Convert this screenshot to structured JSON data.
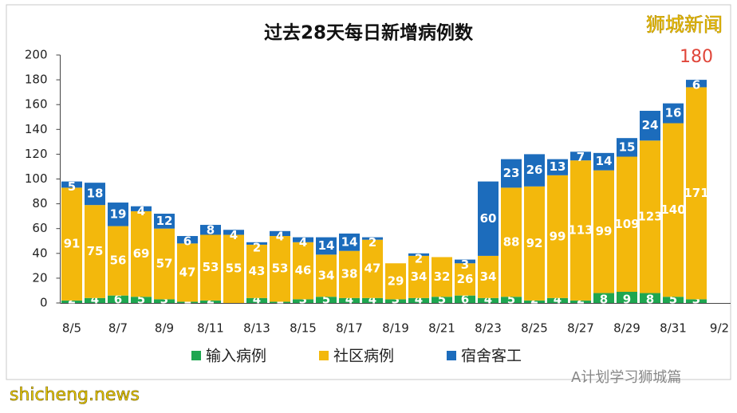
{
  "chart_data": {
    "type": "stacked_bar",
    "title": "过去28天每日新增病例数",
    "categories": [
      "8/5",
      null,
      "8/7",
      null,
      "8/9",
      null,
      "8/11",
      null,
      "8/13",
      null,
      "8/15",
      null,
      "8/17",
      null,
      "8/19",
      null,
      "8/21",
      null,
      "8/23",
      null,
      "8/25",
      null,
      "8/27",
      null,
      "8/29",
      null,
      "8/31",
      null,
      "9/2"
    ],
    "series": [
      {
        "name": "输入病例",
        "color": "#1ea650",
        "values": [
          2,
          4,
          6,
          5,
          3,
          1,
          2,
          null,
          4,
          1,
          3,
          5,
          4,
          4,
          3,
          4,
          5,
          6,
          4,
          5,
          2,
          4,
          2,
          8,
          9,
          8,
          5,
          3,
          null
        ]
      },
      {
        "name": "社区病例",
        "color": "#f3b80c",
        "values": [
          91,
          75,
          56,
          69,
          57,
          47,
          53,
          55,
          43,
          53,
          46,
          34,
          38,
          47,
          29,
          34,
          32,
          26,
          34,
          88,
          92,
          99,
          113,
          99,
          109,
          123,
          140,
          171,
          null
        ]
      },
      {
        "name": "宿舍客工",
        "color": "#1c6cbc",
        "values": [
          5,
          18,
          19,
          4,
          12,
          6,
          8,
          4,
          2,
          4,
          4,
          14,
          14,
          2,
          null,
          2,
          null,
          3,
          60,
          23,
          26,
          13,
          7,
          14,
          15,
          24,
          16,
          6,
          null
        ]
      }
    ],
    "annotation": "180",
    "ylim": [
      0,
      200
    ],
    "yticks": [
      0,
      20,
      40,
      60,
      80,
      100,
      120,
      140,
      160,
      180,
      200
    ],
    "legend": "bottom"
  },
  "watermarks": {
    "top_right": "狮城新闻",
    "bottom_left": "shicheng.news",
    "bottom_right": "A计划学习狮城篇"
  }
}
